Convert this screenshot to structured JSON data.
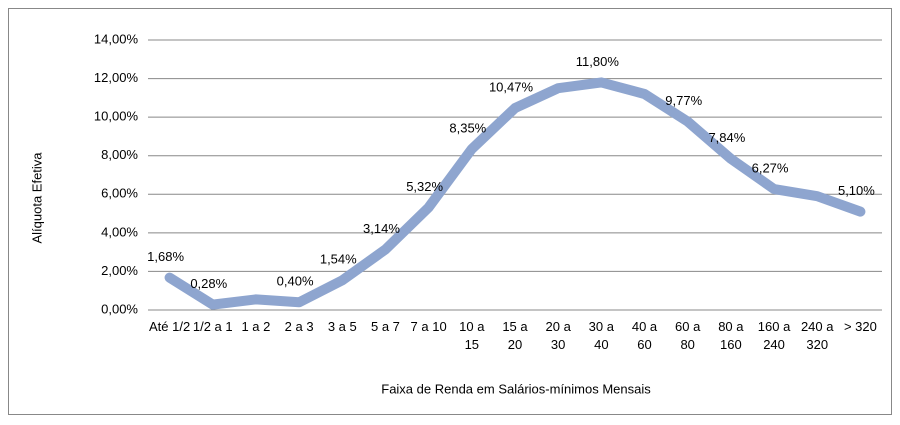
{
  "chart_data": {
    "type": "line",
    "ylabel": "Alíquota Efetiva",
    "xlabel": "Faixa de Renda em Salários-mínimos Mensais",
    "categories": [
      "Até 1/2",
      "1/2 a 1",
      "1 a 2",
      "2 a 3",
      "3 a 5",
      "5 a 7",
      "7 a 10",
      "10 a 15",
      "15 a 20",
      "20 a 30",
      "30 a 40",
      "40 a 60",
      "60 a 80",
      "80 a 160",
      "160 a 240",
      "240 a 320",
      "> 320"
    ],
    "values": [
      1.68,
      0.28,
      0.55,
      0.4,
      1.54,
      3.14,
      5.32,
      8.35,
      10.47,
      11.5,
      11.8,
      11.2,
      9.77,
      7.84,
      6.27,
      5.9,
      5.1
    ],
    "value_labels": [
      "1,68%",
      "0,28%",
      null,
      "0,40%",
      "1,54%",
      "3,14%",
      "5,32%",
      "8,35%",
      "10,47%",
      null,
      "11,80%",
      null,
      "9,77%",
      "7,84%",
      "6,27%",
      null,
      "5,10%"
    ],
    "color": "#8ea5cf",
    "ylim": [
      0,
      14
    ],
    "yticks": [
      {
        "value": 0,
        "label": "0,00%"
      },
      {
        "value": 2,
        "label": "2,00%"
      },
      {
        "value": 4,
        "label": "4,00%"
      },
      {
        "value": 6,
        "label": "6,00%"
      },
      {
        "value": 8,
        "label": "8,00%"
      },
      {
        "value": 10,
        "label": "10,00%"
      },
      {
        "value": 12,
        "label": "12,00%"
      },
      {
        "value": 14,
        "label": "14,00%"
      }
    ],
    "grid": true
  }
}
